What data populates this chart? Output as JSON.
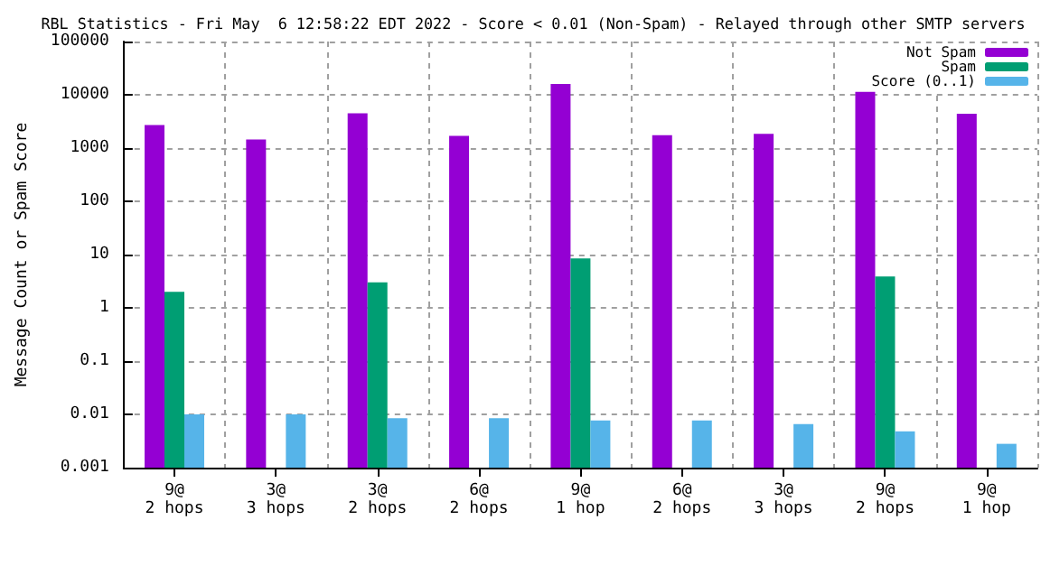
{
  "chart_data": {
    "type": "bar",
    "title": "RBL Statistics - Fri May  6 12:58:22 EDT 2022 - Score < 0.01 (Non-Spam) - Relayed through other SMTP servers",
    "ylabel": "Message Count or Spam Score",
    "categories": [
      "9@\n2 hops",
      "3@\n3 hops",
      "3@\n2 hops",
      "6@\n2 hops",
      "9@\n1 hop",
      "6@\n2 hops",
      "3@\n3 hops",
      "9@\n2 hops",
      "9@\n1 hop"
    ],
    "series": [
      {
        "name": "Not Spam",
        "color": "#9400d3",
        "values": [
          2700,
          1450,
          4500,
          1700,
          16000,
          1750,
          1850,
          11300,
          4400
        ]
      },
      {
        "name": "Spam",
        "color": "#009e73",
        "values": [
          2,
          null,
          3,
          null,
          8.5,
          null,
          null,
          3.9,
          null
        ]
      },
      {
        "name": "Score (0..1)",
        "color": "#56b4e9",
        "values": [
          0.01,
          0.01,
          0.0085,
          0.0085,
          0.0077,
          0.0077,
          0.0066,
          0.0048,
          0.0028
        ]
      }
    ],
    "log": "y",
    "ylim": [
      0.001,
      100000
    ],
    "yticks": [
      0.001,
      0.01,
      0.1,
      1,
      10,
      100,
      1000,
      10000,
      100000
    ],
    "grid": true,
    "legend": "top right"
  }
}
